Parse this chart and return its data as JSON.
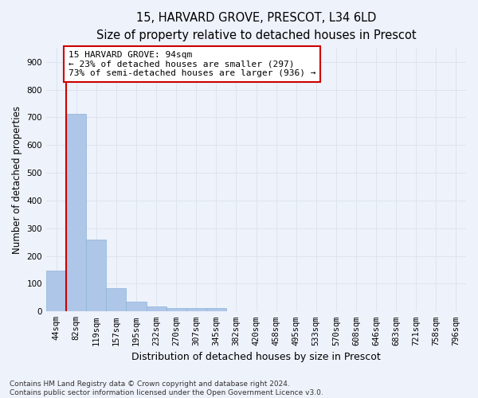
{
  "title_line1": "15, HARVARD GROVE, PRESCOT, L34 6LD",
  "title_line2": "Size of property relative to detached houses in Prescot",
  "xlabel": "Distribution of detached houses by size in Prescot",
  "ylabel": "Number of detached properties",
  "categories": [
    "44sqm",
    "82sqm",
    "119sqm",
    "157sqm",
    "195sqm",
    "232sqm",
    "270sqm",
    "307sqm",
    "345sqm",
    "382sqm",
    "420sqm",
    "458sqm",
    "495sqm",
    "533sqm",
    "570sqm",
    "608sqm",
    "646sqm",
    "683sqm",
    "721sqm",
    "758sqm",
    "796sqm"
  ],
  "values": [
    148,
    712,
    260,
    84,
    35,
    18,
    11,
    11,
    11,
    0,
    0,
    0,
    0,
    0,
    0,
    0,
    0,
    0,
    0,
    0,
    0
  ],
  "bar_color": "#aec6e8",
  "bar_edge_color": "#8ab4d8",
  "grid_color": "#dce4f0",
  "background_color": "#eef2fb",
  "vline_x": 0.5,
  "vline_color": "#cc0000",
  "annotation_text": "15 HARVARD GROVE: 94sqm\n← 23% of detached houses are smaller (297)\n73% of semi-detached houses are larger (936) →",
  "annotation_box_color": "#ffffff",
  "annotation_box_edge": "#cc0000",
  "ylim": [
    0,
    950
  ],
  "yticks": [
    0,
    100,
    200,
    300,
    400,
    500,
    600,
    700,
    800,
    900
  ],
  "footnote": "Contains HM Land Registry data © Crown copyright and database right 2024.\nContains public sector information licensed under the Open Government Licence v3.0.",
  "title_fontsize": 10.5,
  "subtitle_fontsize": 9.5,
  "xlabel_fontsize": 9,
  "ylabel_fontsize": 8.5,
  "tick_fontsize": 7.5,
  "annotation_fontsize": 8,
  "footnote_fontsize": 6.5
}
